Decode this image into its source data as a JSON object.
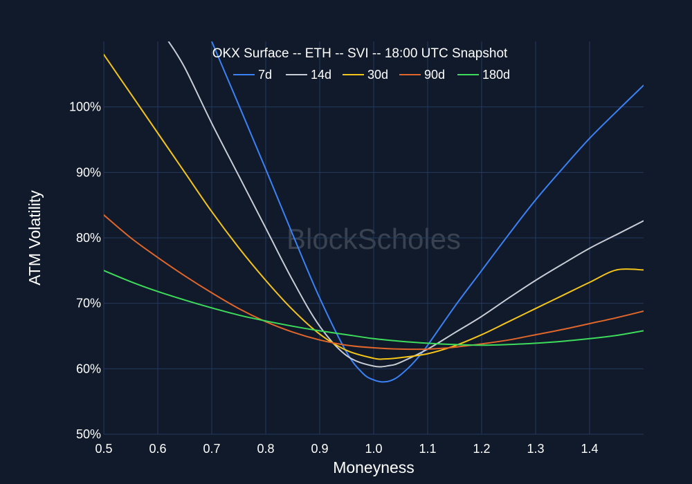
{
  "chart_data": {
    "type": "line",
    "title": "OKX Surface -- ETH -- SVI -- 18:00 UTC Snapshot",
    "xlabel": "Moneyness",
    "ylabel": "ATM Volatility",
    "xlim": [
      0.5,
      1.5
    ],
    "ylim": [
      50,
      110
    ],
    "xticks": [
      0.5,
      0.6,
      0.7,
      0.8,
      0.9,
      1.0,
      1.1,
      1.2,
      1.3,
      1.4
    ],
    "xtick_labels": [
      "0.5",
      "0.6",
      "0.7",
      "0.8",
      "0.9",
      "1.0",
      "1.1",
      "1.2",
      "1.3",
      "1.4"
    ],
    "yticks": [
      50,
      60,
      70,
      80,
      90,
      100
    ],
    "ytick_labels": [
      "50%",
      "60%",
      "70%",
      "80%",
      "90%",
      "100%"
    ],
    "grid": true,
    "legend_position": "top-center",
    "watermark": "BlockScholes",
    "colors": {
      "background": "#101a2b",
      "grid": "#26395c"
    },
    "series": [
      {
        "name": "7d",
        "color": "#3b82f6",
        "x": [
          0.7,
          0.75,
          0.8,
          0.85,
          0.9,
          0.95,
          0.98,
          1.0,
          1.02,
          1.04,
          1.06,
          1.08,
          1.1,
          1.15,
          1.2,
          1.25,
          1.3,
          1.35,
          1.4,
          1.45,
          1.5
        ],
        "y": [
          110.0,
          100.3,
          90.5,
          80.5,
          70.8,
          62.5,
          59.3,
          58.3,
          58.0,
          58.5,
          59.8,
          61.5,
          63.6,
          69.5,
          75.0,
          80.5,
          85.8,
          90.6,
          95.2,
          99.3,
          103.3
        ]
      },
      {
        "name": "14d",
        "color": "#c8cdd6",
        "x": [
          0.62,
          0.65,
          0.7,
          0.75,
          0.8,
          0.85,
          0.9,
          0.95,
          1.0,
          1.03,
          1.05,
          1.1,
          1.15,
          1.2,
          1.25,
          1.3,
          1.35,
          1.4,
          1.45,
          1.5
        ],
        "y": [
          110.0,
          106.0,
          97.5,
          89.5,
          81.5,
          73.5,
          66.5,
          62.0,
          60.4,
          60.5,
          61.0,
          63.0,
          65.5,
          68.0,
          70.8,
          73.5,
          76.0,
          78.4,
          80.5,
          82.6
        ]
      },
      {
        "name": "30d",
        "color": "#f5c518",
        "x": [
          0.5,
          0.55,
          0.6,
          0.65,
          0.7,
          0.75,
          0.8,
          0.85,
          0.9,
          0.95,
          1.0,
          1.02,
          1.05,
          1.1,
          1.15,
          1.2,
          1.25,
          1.3,
          1.35,
          1.4,
          1.45,
          1.5
        ],
        "y": [
          108.0,
          102.0,
          96.0,
          90.0,
          84.0,
          78.5,
          73.5,
          69.0,
          65.3,
          62.8,
          61.6,
          61.5,
          61.7,
          62.3,
          63.5,
          65.2,
          67.2,
          69.2,
          71.2,
          73.2,
          75.1,
          75.1
        ]
      },
      {
        "name": "90d",
        "color": "#e0662a",
        "x": [
          0.5,
          0.55,
          0.6,
          0.65,
          0.7,
          0.75,
          0.8,
          0.85,
          0.9,
          0.95,
          1.0,
          1.05,
          1.1,
          1.15,
          1.2,
          1.25,
          1.3,
          1.35,
          1.4,
          1.45,
          1.5
        ],
        "y": [
          83.5,
          80.0,
          77.0,
          74.2,
          71.6,
          69.2,
          67.2,
          65.6,
          64.4,
          63.6,
          63.2,
          63.0,
          63.0,
          63.3,
          63.8,
          64.4,
          65.2,
          66.0,
          66.9,
          67.8,
          68.8
        ]
      },
      {
        "name": "180d",
        "color": "#3ddc5a",
        "x": [
          0.5,
          0.55,
          0.6,
          0.65,
          0.7,
          0.75,
          0.8,
          0.85,
          0.9,
          0.95,
          1.0,
          1.05,
          1.1,
          1.15,
          1.2,
          1.25,
          1.3,
          1.35,
          1.4,
          1.45,
          1.5
        ],
        "y": [
          75.0,
          73.3,
          71.8,
          70.5,
          69.3,
          68.2,
          67.3,
          66.5,
          65.8,
          65.2,
          64.6,
          64.2,
          63.9,
          63.7,
          63.6,
          63.7,
          63.9,
          64.2,
          64.6,
          65.1,
          65.8
        ]
      }
    ]
  }
}
